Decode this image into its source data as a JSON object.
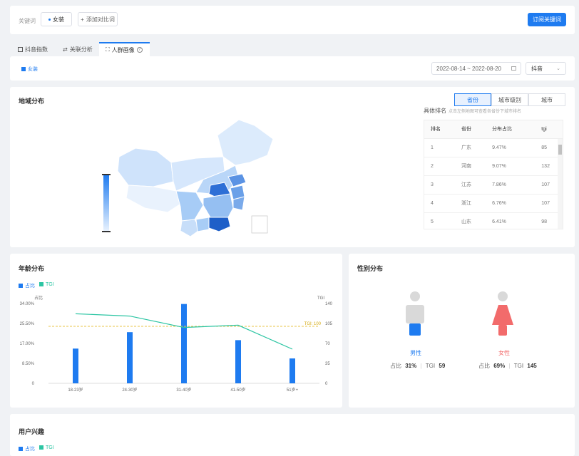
{
  "header": {
    "keyword_label": "关键词",
    "keyword_tag": "女装",
    "add_compare": "添加对比词",
    "subscribe": "订阅关键词"
  },
  "tabs": [
    {
      "label": "抖音指数"
    },
    {
      "label": "关联分析"
    },
    {
      "label": "人群画像"
    }
  ],
  "filter": {
    "legend": "女装",
    "date_range": "2022-08-14 ~ 2022-08-20",
    "platform": "抖音"
  },
  "region": {
    "title": "地域分布",
    "segments": [
      "省份",
      "城市级别",
      "城市"
    ],
    "rank_title": "具体排名",
    "rank_hint": "点击左侧地图可查看各省份下城市排名",
    "columns": [
      "排名",
      "省份",
      "分布占比",
      "tgi"
    ],
    "rows": [
      [
        "1",
        "广东",
        "9.47%",
        "85"
      ],
      [
        "2",
        "河南",
        "9.07%",
        "132"
      ],
      [
        "3",
        "江苏",
        "7.86%",
        "107"
      ],
      [
        "4",
        "浙江",
        "6.76%",
        "107"
      ],
      [
        "5",
        "山东",
        "6.41%",
        "98"
      ]
    ]
  },
  "age": {
    "title": "年龄分布",
    "legend_ratio": "占比",
    "legend_tgi": "TGI",
    "left_axis_title": "占比",
    "right_axis_title": "TGI",
    "tgi_line_label": "TGI: 100"
  },
  "gender": {
    "title": "性别分布",
    "male": {
      "label": "男性",
      "ratio_label": "占比",
      "ratio": "31%",
      "tgi_label": "TGI",
      "tgi": "59"
    },
    "female": {
      "label": "女性",
      "ratio_label": "占比",
      "ratio": "69%",
      "tgi_label": "TGI",
      "tgi": "145"
    }
  },
  "interest": {
    "title": "用户兴趣",
    "legend_ratio": "占比",
    "legend_tgi": "TGI"
  },
  "colors": {
    "primary": "#1e7bf0",
    "tgi_line": "#2cc5a3",
    "male": "#1e7bf0",
    "female": "#f26b6b"
  },
  "chart_data": {
    "type": "bar",
    "categories": [
      "18-23岁",
      "24-30岁",
      "31-40岁",
      "41-50岁",
      "51岁+"
    ],
    "series": [
      {
        "name": "占比",
        "values": [
          14.8,
          21.8,
          33.8,
          18.4,
          10.6
        ]
      },
      {
        "name": "TGI",
        "values": [
          122,
          118,
          98,
          102,
          60
        ]
      }
    ],
    "left_ticks": [
      "34.00%",
      "25.50%",
      "17.00%",
      "8.50%",
      "0"
    ],
    "right_ticks": [
      "140",
      "105",
      "70",
      "35",
      "0"
    ],
    "ylim": [
      0,
      34
    ],
    "y2lim": [
      0,
      140
    ],
    "reference_line": 100
  }
}
